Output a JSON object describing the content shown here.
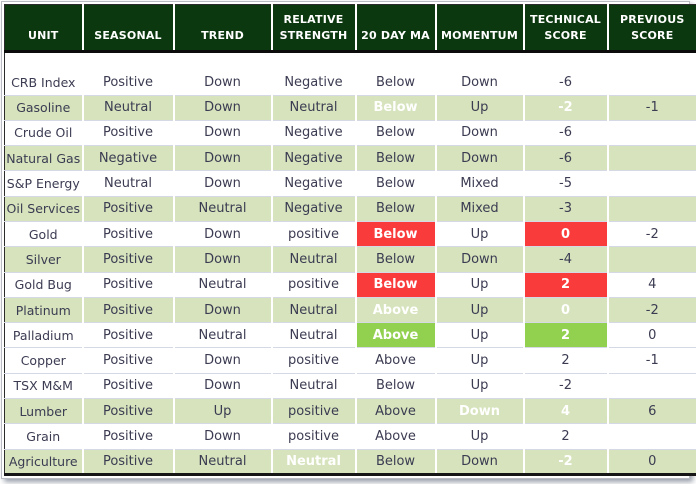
{
  "colors": {
    "header_bg": "#0c380f",
    "header_text": "#ffffff",
    "row_green": "#d6e3bc",
    "row_white": "#ffffff",
    "highlight_red": "#fa3b3b",
    "highlight_green": "#92d050",
    "body_text": "#3b3b52",
    "gridline": "#d5d9e6",
    "table_border": "#161616"
  },
  "chart_data": {
    "type": "table",
    "columns": [
      {
        "key": "unit",
        "label": "UNIT",
        "width": 78
      },
      {
        "key": "seasonal",
        "label": "SEASONAL",
        "width": 91
      },
      {
        "key": "trend",
        "label": "TREND",
        "width": 98
      },
      {
        "key": "relative-strength",
        "label": "RELATIVE STRENGTH",
        "width": 84
      },
      {
        "key": "20-day-ma",
        "label": "20 DAY MA",
        "width": 80
      },
      {
        "key": "momentum",
        "label": "MOMENTUM",
        "width": 88
      },
      {
        "key": "technical-score",
        "label": "TECHNICAL SCORE",
        "width": 84
      },
      {
        "key": "previous-score",
        "label": "PREVIOUS SCORE",
        "width": 90
      }
    ],
    "rows": [
      {
        "values": [
          "CRB Index",
          "Positive",
          "Down",
          "Negative",
          "Below",
          "Down",
          "-6",
          ""
        ],
        "bg": "white",
        "tall": true,
        "highlights": {}
      },
      {
        "values": [
          "Gasoline",
          "Neutral",
          "Down",
          "Neutral",
          "Below",
          "Up",
          "-2",
          "-1"
        ],
        "bg": "green",
        "highlights": {
          "4": "red",
          "6": "red"
        }
      },
      {
        "values": [
          "Crude Oil",
          "Positive",
          "Down",
          "Negative",
          "Below",
          "Down",
          "-6",
          ""
        ],
        "bg": "white",
        "highlights": {}
      },
      {
        "values": [
          "Natural Gas",
          "Negative",
          "Down",
          "Negative",
          "Below",
          "Down",
          "-6",
          ""
        ],
        "bg": "green",
        "unit_bg": "white",
        "highlights": {}
      },
      {
        "values": [
          "S&P Energy",
          "Neutral",
          "Down",
          "Negative",
          "Below",
          "Mixed",
          "-5",
          ""
        ],
        "bg": "white",
        "highlights": {}
      },
      {
        "values": [
          "Oil Services",
          "Positive",
          "Neutral",
          "Negative",
          "Below",
          "Mixed",
          "-3",
          ""
        ],
        "bg": "green",
        "highlights": {}
      },
      {
        "values": [
          "Gold",
          "Positive",
          "Down",
          "positive",
          "Below",
          "Up",
          "0",
          "-2"
        ],
        "bg": "white",
        "highlights": {
          "4": "red",
          "6": "red"
        }
      },
      {
        "values": [
          "Silver",
          "Positive",
          "Down",
          "Neutral",
          "Below",
          "Down",
          "-4",
          ""
        ],
        "bg": "green",
        "highlights": {}
      },
      {
        "values": [
          "Gold Bug",
          "Positive",
          "Neutral",
          "positive",
          "Below",
          "Up",
          "2",
          "4"
        ],
        "bg": "white",
        "highlights": {
          "4": "red",
          "6": "red"
        }
      },
      {
        "values": [
          "Platinum",
          "Positive",
          "Down",
          "Neutral",
          "Above",
          "Up",
          "0",
          "-2"
        ],
        "bg": "green",
        "highlights": {
          "4": "green",
          "6": "green"
        }
      },
      {
        "values": [
          "Palladium",
          "Positive",
          "Neutral",
          "Neutral",
          "Above",
          "Up",
          "2",
          "0"
        ],
        "bg": "white",
        "highlights": {
          "4": "green",
          "6": "green"
        }
      },
      {
        "values": [
          "Copper",
          "Positive",
          "Down",
          "positive",
          "Above",
          "Up",
          "2",
          "-1"
        ],
        "bg": "white",
        "highlights": {}
      },
      {
        "values": [
          "TSX M&M",
          "Positive",
          "Down",
          "Neutral",
          "Below",
          "Up",
          "-2",
          ""
        ],
        "bg": "white",
        "highlights": {}
      },
      {
        "values": [
          "Lumber",
          "Positive",
          "Up",
          "positive",
          "Above",
          "Down",
          "4",
          "6"
        ],
        "bg": "green",
        "highlights": {
          "5": "red",
          "6": "red"
        }
      },
      {
        "values": [
          "Grain",
          "Positive",
          "Down",
          "positive",
          "Above",
          "Up",
          "2",
          ""
        ],
        "bg": "white",
        "highlights": {}
      },
      {
        "values": [
          "Agriculture",
          "Positive",
          "Neutral",
          "Neutral",
          "Below",
          "Down",
          "-2",
          "0"
        ],
        "bg": "green",
        "highlights": {
          "3": "red",
          "6": "red"
        }
      }
    ]
  }
}
